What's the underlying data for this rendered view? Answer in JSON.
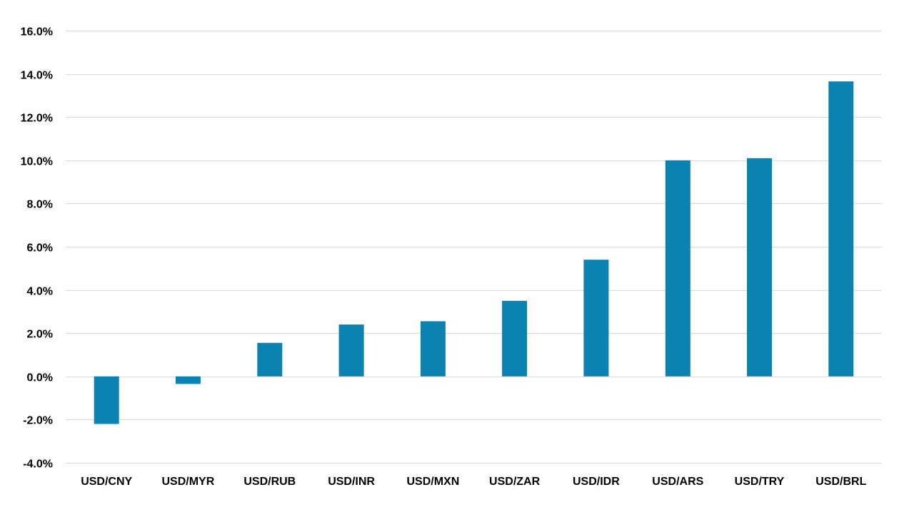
{
  "chart_data": {
    "type": "bar",
    "title": "",
    "xlabel": "",
    "ylabel": "",
    "categories": [
      "USD/CNY",
      "USD/MYR",
      "USD/RUB",
      "USD/INR",
      "USD/MXN",
      "USD/ZAR",
      "USD/IDR",
      "USD/ARS",
      "USD/TRY",
      "USD/BRL"
    ],
    "values": [
      -2.2,
      -0.35,
      1.55,
      2.4,
      2.55,
      3.5,
      5.4,
      10.0,
      10.1,
      13.65
    ],
    "ylim": [
      -4.0,
      16.0
    ],
    "yticks": [
      -4.0,
      -2.0,
      0.0,
      2.0,
      4.0,
      6.0,
      8.0,
      10.0,
      12.0,
      14.0,
      16.0
    ],
    "ytick_labels": [
      "-4.0%",
      "-2.0%",
      "0.0%",
      "2.0%",
      "4.0%",
      "6.0%",
      "8.0%",
      "10.0%",
      "12.0%",
      "14.0%",
      "16.0%"
    ],
    "grid": true,
    "legend": "none",
    "colors": {
      "bar": "#0b82b0",
      "grid": "#d9d9d9",
      "text": "#000000"
    }
  }
}
